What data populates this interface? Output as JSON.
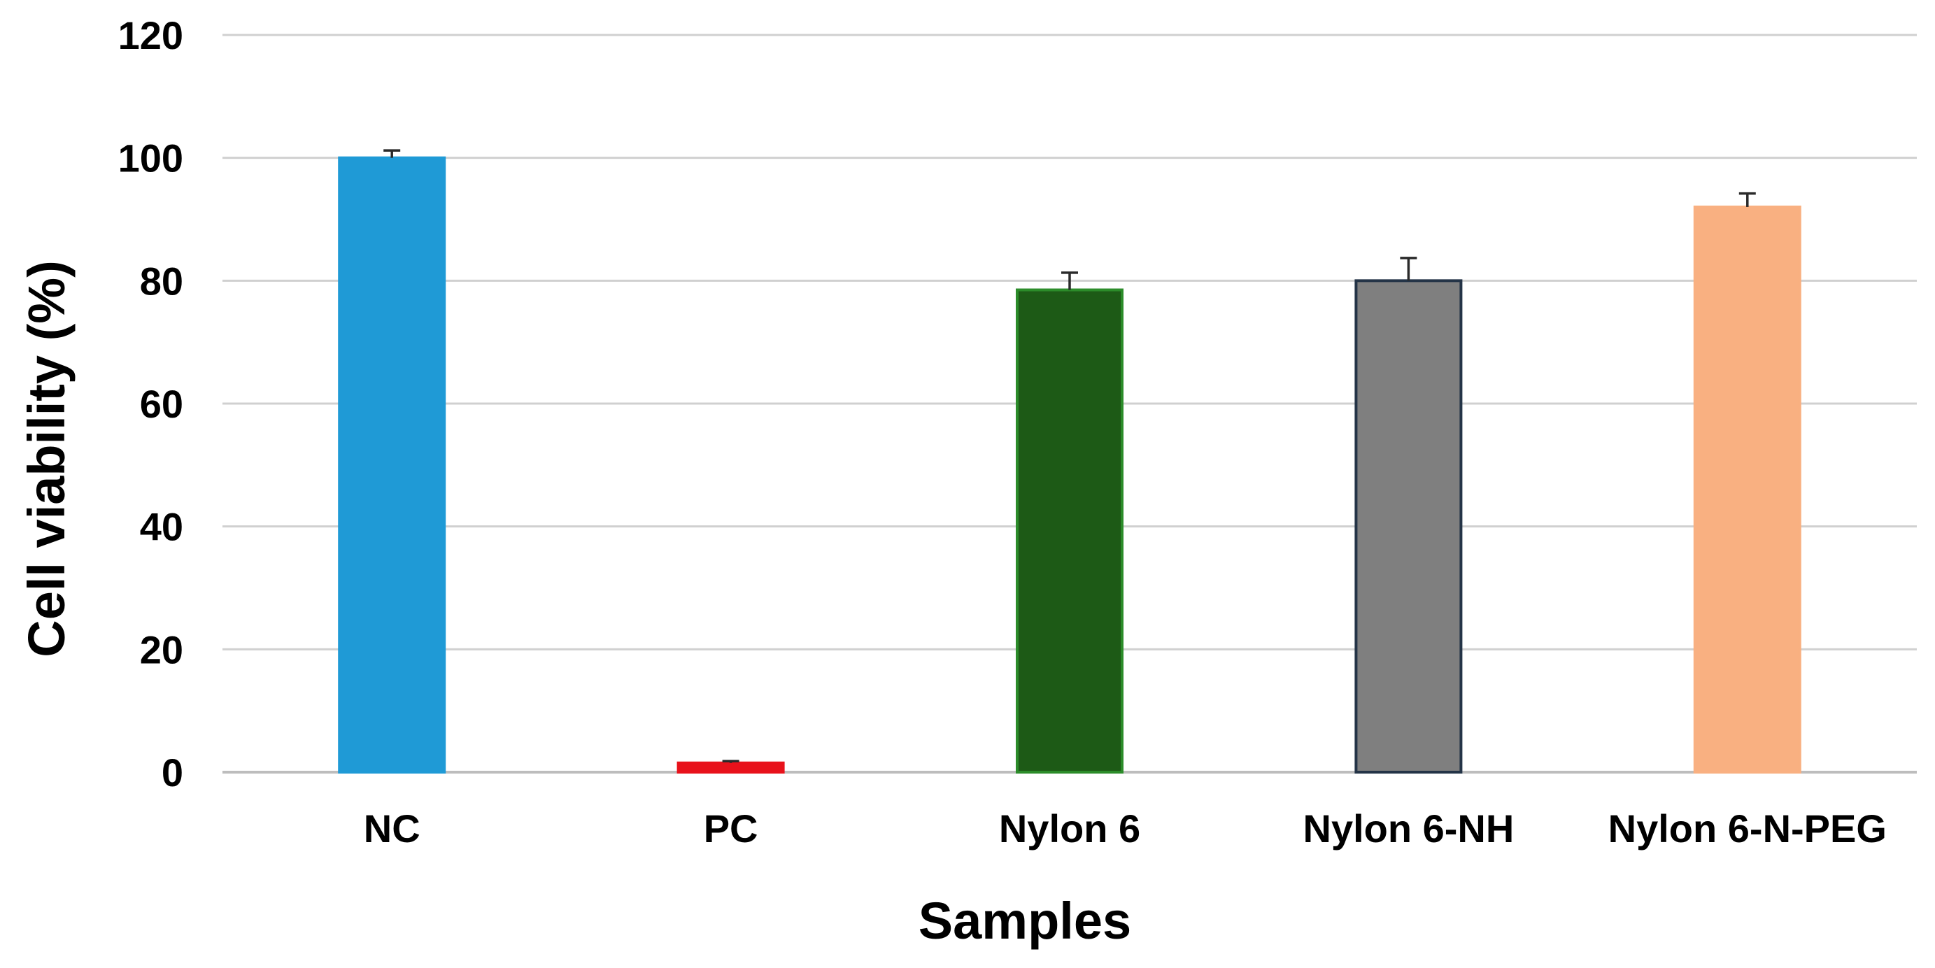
{
  "chart_data": {
    "type": "bar",
    "categories": [
      "NC",
      "PC",
      "Nylon 6",
      "Nylon 6-NH",
      "Nylon 6-N-PEG"
    ],
    "values": [
      100,
      1.5,
      78.5,
      80,
      92
    ],
    "errors": [
      1.2,
      0.3,
      2.8,
      3.7,
      2.2
    ],
    "colors": [
      "#1f9ad6",
      "#e8121b",
      "#1d5a16",
      "#7f7f7f",
      "#f9b081"
    ],
    "border_colors": [
      "#1f9ad6",
      "#e8121b",
      "#2c8c2a",
      "#243447",
      "#f9b081"
    ],
    "xlabel": "Samples",
    "ylabel": "Cell viability (%)",
    "ylim": [
      0,
      120
    ],
    "yticks": [
      0,
      20,
      40,
      60,
      80,
      100,
      120
    ],
    "grid": true,
    "legend": "none"
  }
}
